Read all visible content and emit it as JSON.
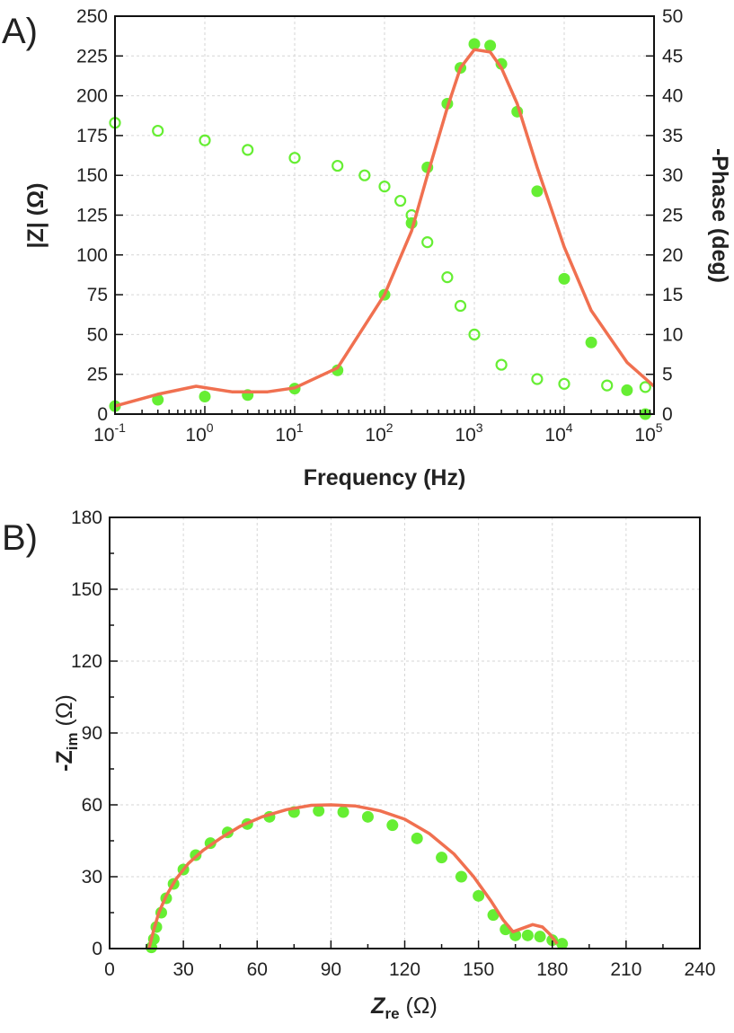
{
  "chart_data": [
    {
      "panel_label": "A)",
      "type": "scatter",
      "xlabel": "Frequency (Hz)",
      "ylabel_left": "|Z| (Ω)",
      "ylabel_right": "-Phase (deg)",
      "x_scale": "log",
      "xlim": [
        0.1,
        100000
      ],
      "ylim_left": [
        0,
        250
      ],
      "ylim_right": [
        0,
        50
      ],
      "x_ticks": [
        {
          "base": "10",
          "exp": "-1",
          "value": 0.1
        },
        {
          "base": "10",
          "exp": "0",
          "value": 1
        },
        {
          "base": "10",
          "exp": "1",
          "value": 10
        },
        {
          "base": "10",
          "exp": "2",
          "value": 100
        },
        {
          "base": "10",
          "exp": "3",
          "value": 1000
        },
        {
          "base": "10",
          "exp": "4",
          "value": 10000
        },
        {
          "base": "10",
          "exp": "5",
          "value": 100000
        }
      ],
      "y_ticks_left": [
        "0",
        "25",
        "50",
        "75",
        "100",
        "125",
        "150",
        "175",
        "200",
        "225",
        "250"
      ],
      "y_ticks_right": [
        "0",
        "5",
        "10",
        "15",
        "20",
        "25",
        "30",
        "35",
        "40",
        "45",
        "50"
      ],
      "grid": true,
      "series": [
        {
          "style": "open-circles",
          "axis": "left",
          "color": "#66ee33",
          "x": [
            0.1,
            0.3,
            1,
            3,
            10,
            30,
            60,
            100,
            150,
            200,
            300,
            500,
            700,
            1000,
            2000,
            5000,
            10000,
            30000,
            80000
          ],
          "y": [
            183,
            178,
            172,
            166,
            161,
            156,
            150,
            143,
            134,
            125,
            108,
            86,
            68,
            50,
            31,
            22,
            19,
            18,
            17
          ]
        },
        {
          "style": "filled-circles",
          "axis": "right",
          "color": "#66ee33",
          "x": [
            0.1,
            0.3,
            1,
            3,
            10,
            30,
            100,
            200,
            300,
            500,
            700,
            1000,
            1500,
            2000,
            3000,
            5000,
            10000,
            20000,
            50000,
            80000
          ],
          "y": [
            1,
            1.8,
            2.2,
            2.4,
            3.2,
            5.5,
            15,
            24,
            31,
            39,
            43.5,
            46.5,
            46.3,
            44,
            38,
            28,
            17,
            9,
            3,
            0
          ]
        },
        {
          "style": "fit-line",
          "axis": "right",
          "color": "#f07050",
          "x": [
            0.1,
            0.3,
            0.8,
            2,
            5,
            10,
            30,
            100,
            200,
            300,
            500,
            700,
            1000,
            1500,
            2000,
            3000,
            5000,
            10000,
            20000,
            50000,
            100000
          ],
          "y": [
            1,
            2.5,
            3.5,
            2.8,
            2.8,
            3.3,
            5.8,
            15,
            23,
            30,
            38.5,
            43.5,
            45.8,
            45.5,
            43.5,
            39,
            31,
            21,
            13,
            6.5,
            3.5
          ]
        }
      ]
    },
    {
      "panel_label": "B)",
      "type": "scatter",
      "xlabel_main": "Z",
      "xlabel_sub": "re",
      "xlabel_unit": " (Ω)",
      "ylabel_main": "-Z",
      "ylabel_sub": "im",
      "ylabel_unit": " (Ω)",
      "xlim": [
        0,
        240
      ],
      "ylim": [
        0,
        180
      ],
      "x_ticks": [
        "0",
        "30",
        "60",
        "90",
        "120",
        "150",
        "180",
        "210",
        "240"
      ],
      "y_ticks": [
        "0",
        "30",
        "60",
        "90",
        "120",
        "150",
        "180"
      ],
      "grid": true,
      "series": [
        {
          "style": "filled-circles",
          "color": "#66ee33",
          "x": [
            17,
            18,
            19,
            21,
            23,
            26,
            30,
            35,
            41,
            48,
            56,
            65,
            75,
            85,
            95,
            105,
            115,
            125,
            135,
            143,
            150,
            156,
            161,
            165,
            170,
            175,
            180,
            184
          ],
          "y": [
            0.5,
            4,
            9,
            15,
            21,
            27,
            33,
            39,
            44,
            48.5,
            52,
            55,
            57,
            57.5,
            57,
            55,
            51.5,
            46,
            38,
            30,
            22,
            14,
            8,
            5.5,
            5.5,
            5,
            3.5,
            2
          ]
        },
        {
          "style": "fit-line",
          "color": "#f07050",
          "x": [
            16,
            18,
            20,
            23,
            27,
            32,
            38,
            45,
            53,
            62,
            72,
            82,
            90,
            100,
            110,
            120,
            130,
            140,
            148,
            155,
            160,
            164,
            168,
            172,
            176,
            179,
            182
          ],
          "y": [
            0,
            8,
            15,
            22,
            29,
            35.5,
            41,
            46,
            51,
            55,
            58,
            59.8,
            60,
            59.5,
            57.5,
            54,
            48,
            39.5,
            30,
            20,
            12,
            7,
            8.5,
            10,
            9,
            6,
            2
          ]
        }
      ]
    }
  ]
}
